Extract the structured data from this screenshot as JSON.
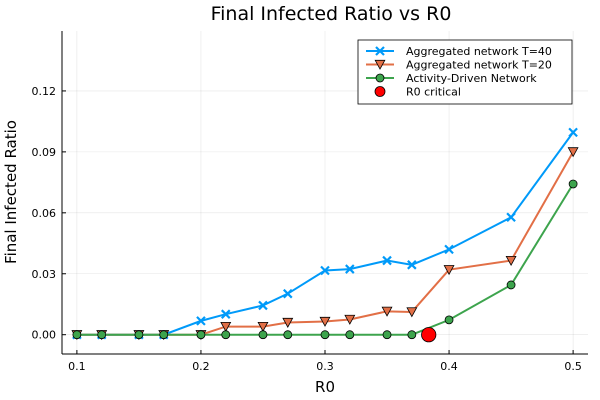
{
  "chart_data": {
    "type": "line",
    "title": "Final Infected Ratio vs R0",
    "xlabel": "R0",
    "ylabel": "Final Infected Ratio",
    "xlim": [
      0.088,
      0.512
    ],
    "ylim": [
      -0.0095,
      0.1495
    ],
    "xticks": [
      0.1,
      0.2,
      0.3,
      0.4,
      0.5
    ],
    "xtick_labels": [
      "0.1",
      "0.2",
      "0.3",
      "0.4",
      "0.5"
    ],
    "yticks": [
      0.0,
      0.03,
      0.06,
      0.09,
      0.12
    ],
    "ytick_labels": [
      "0.00",
      "0.03",
      "0.06",
      "0.09",
      "0.12"
    ],
    "grid": true,
    "legend_position": "top-right",
    "series": [
      {
        "name": "Aggregated network T=40",
        "color": "#009af9",
        "marker": "x",
        "x": [
          0.1,
          0.12,
          0.15,
          0.17,
          0.2,
          0.22,
          0.25,
          0.27,
          0.3,
          0.32,
          0.35,
          0.37,
          0.4,
          0.45,
          0.5
        ],
        "y": [
          0.0,
          0.0,
          0.0,
          0.0,
          0.0068,
          0.0101,
          0.0144,
          0.0202,
          0.0316,
          0.0323,
          0.0365,
          0.0344,
          0.042,
          0.0578,
          0.0996
        ]
      },
      {
        "name": "Aggregated network T=20",
        "color": "#e26f46",
        "marker": "triangle-down",
        "x": [
          0.1,
          0.12,
          0.15,
          0.17,
          0.2,
          0.22,
          0.25,
          0.27,
          0.3,
          0.32,
          0.35,
          0.37,
          0.4,
          0.45,
          0.5
        ],
        "y": [
          0.0,
          0.0,
          0.0,
          0.0,
          0.0,
          0.004,
          0.004,
          0.006,
          0.0065,
          0.0075,
          0.0115,
          0.0112,
          0.032,
          0.0365,
          0.09
        ]
      },
      {
        "name": "Activity-Driven Network",
        "color": "#3da44d",
        "marker": "circle",
        "x": [
          0.1,
          0.12,
          0.15,
          0.17,
          0.2,
          0.22,
          0.25,
          0.27,
          0.3,
          0.32,
          0.35,
          0.37,
          0.4,
          0.45,
          0.5
        ],
        "y": [
          0.0,
          0.0,
          0.0,
          0.0,
          0.0,
          0.0,
          0.0,
          0.0,
          0.0,
          0.0,
          0.0,
          0.0,
          0.0073,
          0.0245,
          0.0742
        ]
      },
      {
        "name": "R0 critical",
        "color": "#ff0000",
        "marker": "big-circle",
        "x": [
          0.3836
        ],
        "y": [
          0.0
        ]
      }
    ]
  }
}
